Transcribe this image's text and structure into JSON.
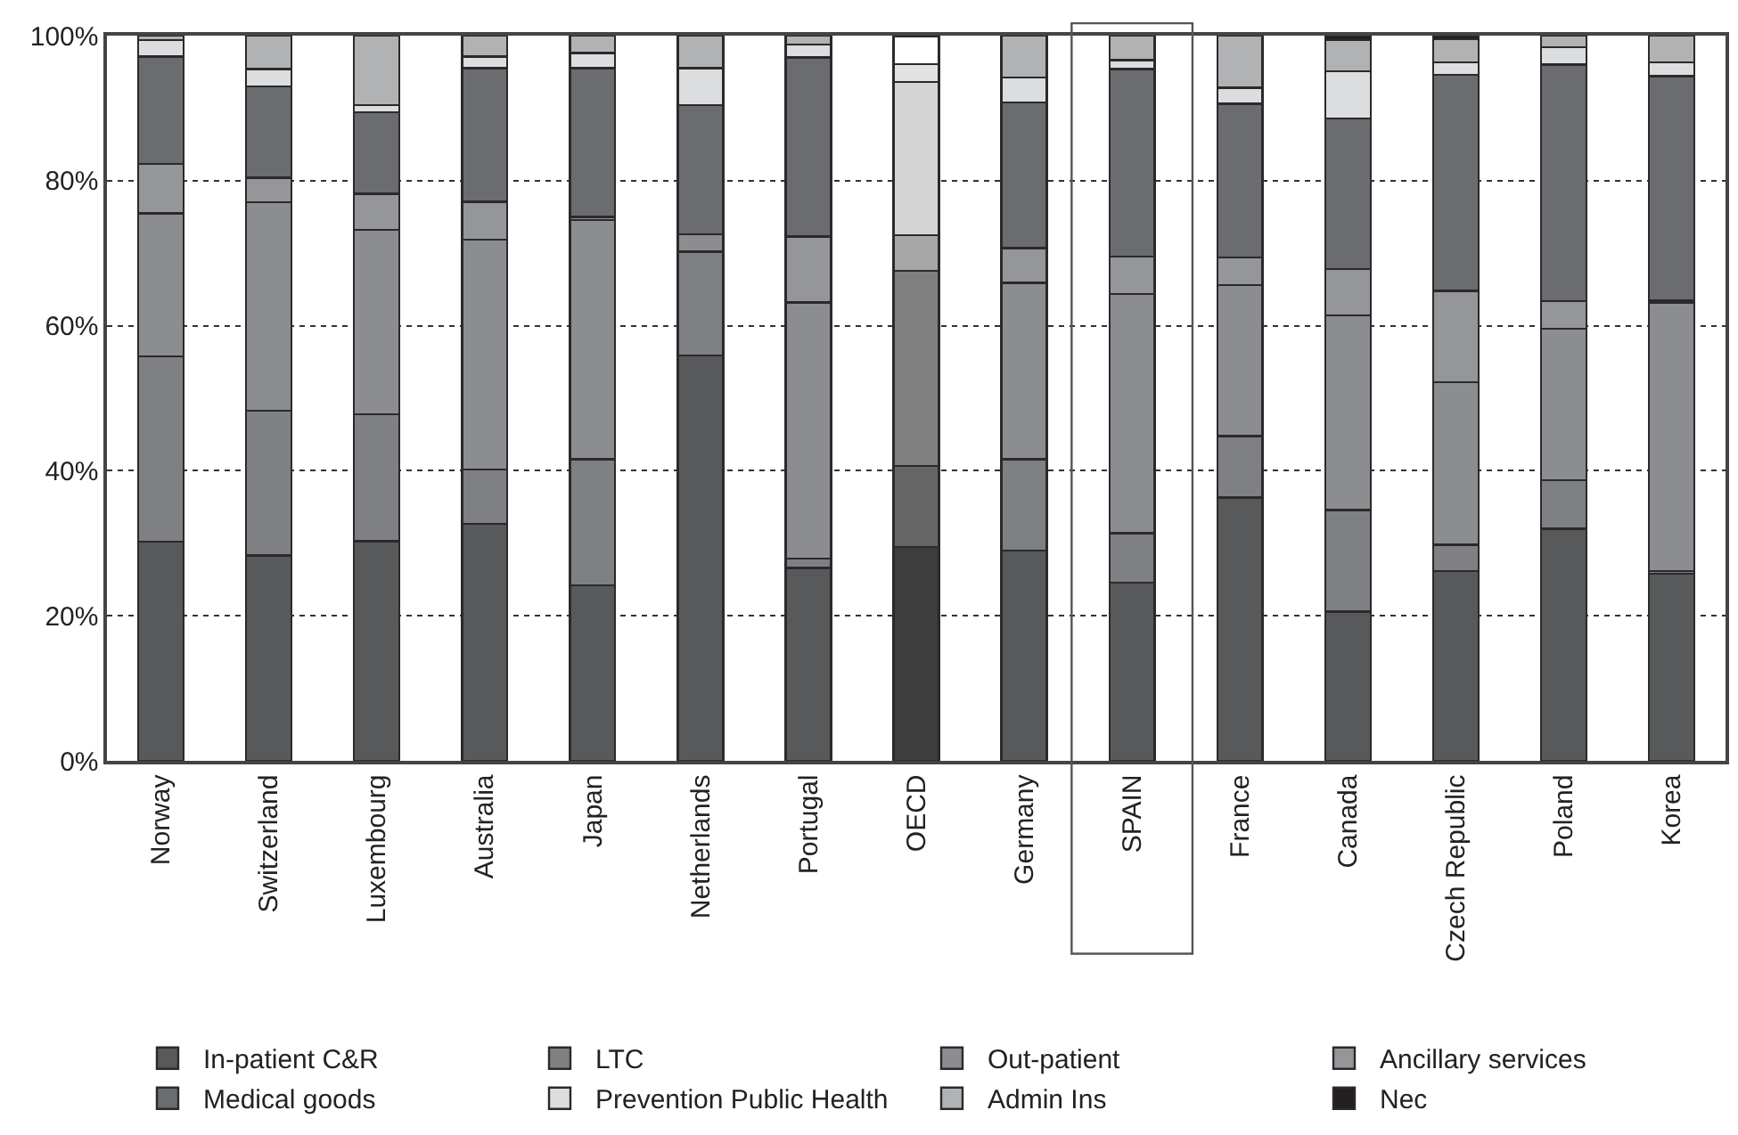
{
  "chart_data": {
    "type": "bar",
    "stacked": true,
    "categories": [
      "Norway",
      "Switzerland",
      "Luxembourg",
      "Australia",
      "Japan",
      "Netherlands",
      "Portugal",
      "OECD",
      "Germany",
      "SPAIN",
      "France",
      "Canada",
      "Czech Republic",
      "Poland",
      "Korea"
    ],
    "series": [
      {
        "name": "In-patient C&R",
        "color": "#58595b",
        "colors": [
          "#58595b",
          "#58595b",
          "#58595b",
          "#58595b",
          "#58595b",
          "#58595b",
          "#58595b",
          "#3d3d3d",
          "#58595b",
          "#58595b",
          "#58595b",
          "#58595b",
          "#58595b",
          "#58595b",
          "#58595b"
        ],
        "values": [
          30.2,
          28.3,
          30.3,
          32.7,
          24.2,
          55.9,
          26.6,
          29.5,
          29.0,
          24.6,
          36.3,
          20.6,
          26.2,
          32.0,
          25.8
        ]
      },
      {
        "name": "LTC",
        "color": "#7f8083",
        "colors": [
          "#7f8083",
          "#7f8083",
          "#7f8083",
          "#7f8083",
          "#7f8083",
          "#7f8083",
          "#7f8083",
          "#666666",
          "#7f8083",
          "#7f8083",
          "#7f8083",
          "#7f8083",
          "#7f8083",
          "#7f8083",
          "#7f8083"
        ],
        "values": [
          25.6,
          20.0,
          17.5,
          7.5,
          17.4,
          14.3,
          1.3,
          11.2,
          12.6,
          6.8,
          8.5,
          14.0,
          3.6,
          6.7,
          0.4
        ]
      },
      {
        "name": "Out-patient",
        "color": "#8c8d90",
        "colors": [
          "#8c8d90",
          "#8c8d90",
          "#8c8d90",
          "#8c8d90",
          "#8c8d90",
          "#8c8d90",
          "#8c8d90",
          "#808080",
          "#8c8d90",
          "#8c8d90",
          "#8c8d90",
          "#8c8d90",
          "#8c8d90",
          "#8c8d90",
          "#8c8d90"
        ],
        "values": [
          19.7,
          28.7,
          25.4,
          31.7,
          33.0,
          2.4,
          35.3,
          26.9,
          24.3,
          33.0,
          20.8,
          26.8,
          22.4,
          20.9,
          37.0
        ]
      },
      {
        "name": "Ancillary services",
        "color": "#95969a",
        "colors": [
          "#95969a",
          "#95969a",
          "#95969a",
          "#95969a",
          "#95969a",
          "#95969a",
          "#95969a",
          "#a6a6a6",
          "#95969a",
          "#95969a",
          "#95969a",
          "#95969a",
          "#95969a",
          "#95969a",
          "#95969a"
        ],
        "values": [
          6.8,
          3.4,
          5.0,
          5.2,
          0.4,
          0,
          9.1,
          4.9,
          4.8,
          5.1,
          3.8,
          6.4,
          12.6,
          3.8,
          0.3
        ]
      },
      {
        "name": "Medical goods",
        "color": "#6b6c70",
        "colors": [
          "#6b6c70",
          "#6b6c70",
          "#6b6c70",
          "#6b6c70",
          "#6b6c70",
          "#6b6c70",
          "#6b6c70",
          "#d4d4d4",
          "#6b6c70",
          "#6b6c70",
          "#6b6c70",
          "#6b6c70",
          "#6b6c70",
          "#6b6c70",
          "#6b6c70"
        ],
        "values": [
          14.8,
          12.6,
          11.2,
          18.4,
          20.5,
          17.8,
          24.7,
          21.1,
          20.1,
          25.9,
          21.2,
          20.8,
          29.8,
          32.6,
          30.9
        ]
      },
      {
        "name": "Prevention Public Health",
        "color": "#dcdddf",
        "colors": [
          "#dcdddf",
          "#dcdddf",
          "#dcdddf",
          "#dcdddf",
          "#dcdddf",
          "#dcdddf",
          "#dcdddf",
          "#e2e2e2",
          "#dcdddf",
          "#dcdddf",
          "#dcdddf",
          "#dcdddf",
          "#dcdddf",
          "#dcdddf",
          "#dcdddf"
        ],
        "values": [
          2.3,
          2.4,
          1.0,
          1.6,
          2.1,
          5.1,
          1.8,
          2.5,
          3.4,
          1.2,
          2.2,
          6.5,
          1.7,
          2.4,
          1.9
        ]
      },
      {
        "name": "Admin Ins",
        "color": "#b1b2b4",
        "colors": [
          "#b1b2b4",
          "#b1b2b4",
          "#b1b2b4",
          "#b1b2b4",
          "#b1b2b4",
          "#b1b2b4",
          "#b1b2b4",
          "#ffffff",
          "#b1b2b4",
          "#b1b2b4",
          "#b1b2b4",
          "#b1b2b4",
          "#b1b2b4",
          "#b1b2b4",
          "#b1b2b4"
        ],
        "values": [
          0.6,
          4.6,
          9.6,
          2.9,
          2.4,
          4.5,
          1.2,
          3.8,
          5.8,
          3.4,
          7.2,
          4.3,
          3.2,
          1.6,
          3.7
        ]
      },
      {
        "name": "Nec",
        "color": "#231f20",
        "colors": [
          "#231f20",
          "#231f20",
          "#231f20",
          "#231f20",
          "#231f20",
          "#231f20",
          "#231f20",
          "#231f20",
          "#231f20",
          "#231f20",
          "#231f20",
          "#231f20",
          "#231f20",
          "#231f20",
          "#231f20"
        ],
        "values": [
          0,
          0,
          0,
          0,
          0,
          0,
          0,
          0,
          0,
          0,
          0,
          0.6,
          0.5,
          0,
          0
        ]
      }
    ],
    "ylim": [
      0,
      100
    ],
    "yticks": [
      {
        "value": 0,
        "label": "0%"
      },
      {
        "value": 20,
        "label": "20%"
      },
      {
        "value": 40,
        "label": "40%"
      },
      {
        "value": 60,
        "label": "60%"
      },
      {
        "value": 80,
        "label": "80%"
      },
      {
        "value": 100,
        "label": "100%"
      }
    ],
    "grid": "y",
    "legend": "bottom"
  }
}
